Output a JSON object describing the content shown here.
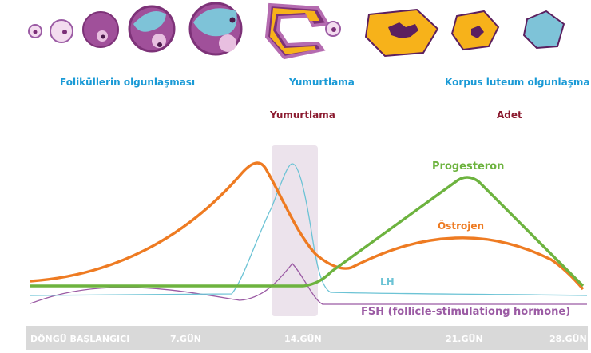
{
  "stages": {
    "follicle": "Foliküllerin olgunlaşması",
    "ovulation": "Yumurtlama",
    "corpus_luteum": "Korpus luteum olgunlaşma"
  },
  "phases": {
    "ovulation": "Yumurtlama",
    "menstruation": "Adet"
  },
  "hormones": {
    "progesterone": "Progesteron",
    "estrogen": "Östrojen",
    "lh": "LH",
    "fsh": "FSH (follicle-stimulationg hormone)"
  },
  "axis": {
    "start": "DÖNGÜ BAŞLANGICI",
    "day7": "7.GÜN",
    "day14": "14.GÜN",
    "day21": "21.GÜN",
    "day28": "28.GÜN"
  },
  "colors": {
    "progesterone": "#6db33f",
    "estrogen": "#ee7b22",
    "lh": "#6cc3d5",
    "fsh": "#9b5ba4",
    "ovulation_band": "#ece3ec",
    "stage_text": "#1a9ad6",
    "phase_text": "#8b1a2f",
    "follicle_purple": "#a0509a",
    "follicle_pink": "#e8bfe0",
    "follicle_blue": "#7ec3d8",
    "corpus_yellow": "#f7b21a",
    "corpus_dark": "#5b1f5f"
  }
}
